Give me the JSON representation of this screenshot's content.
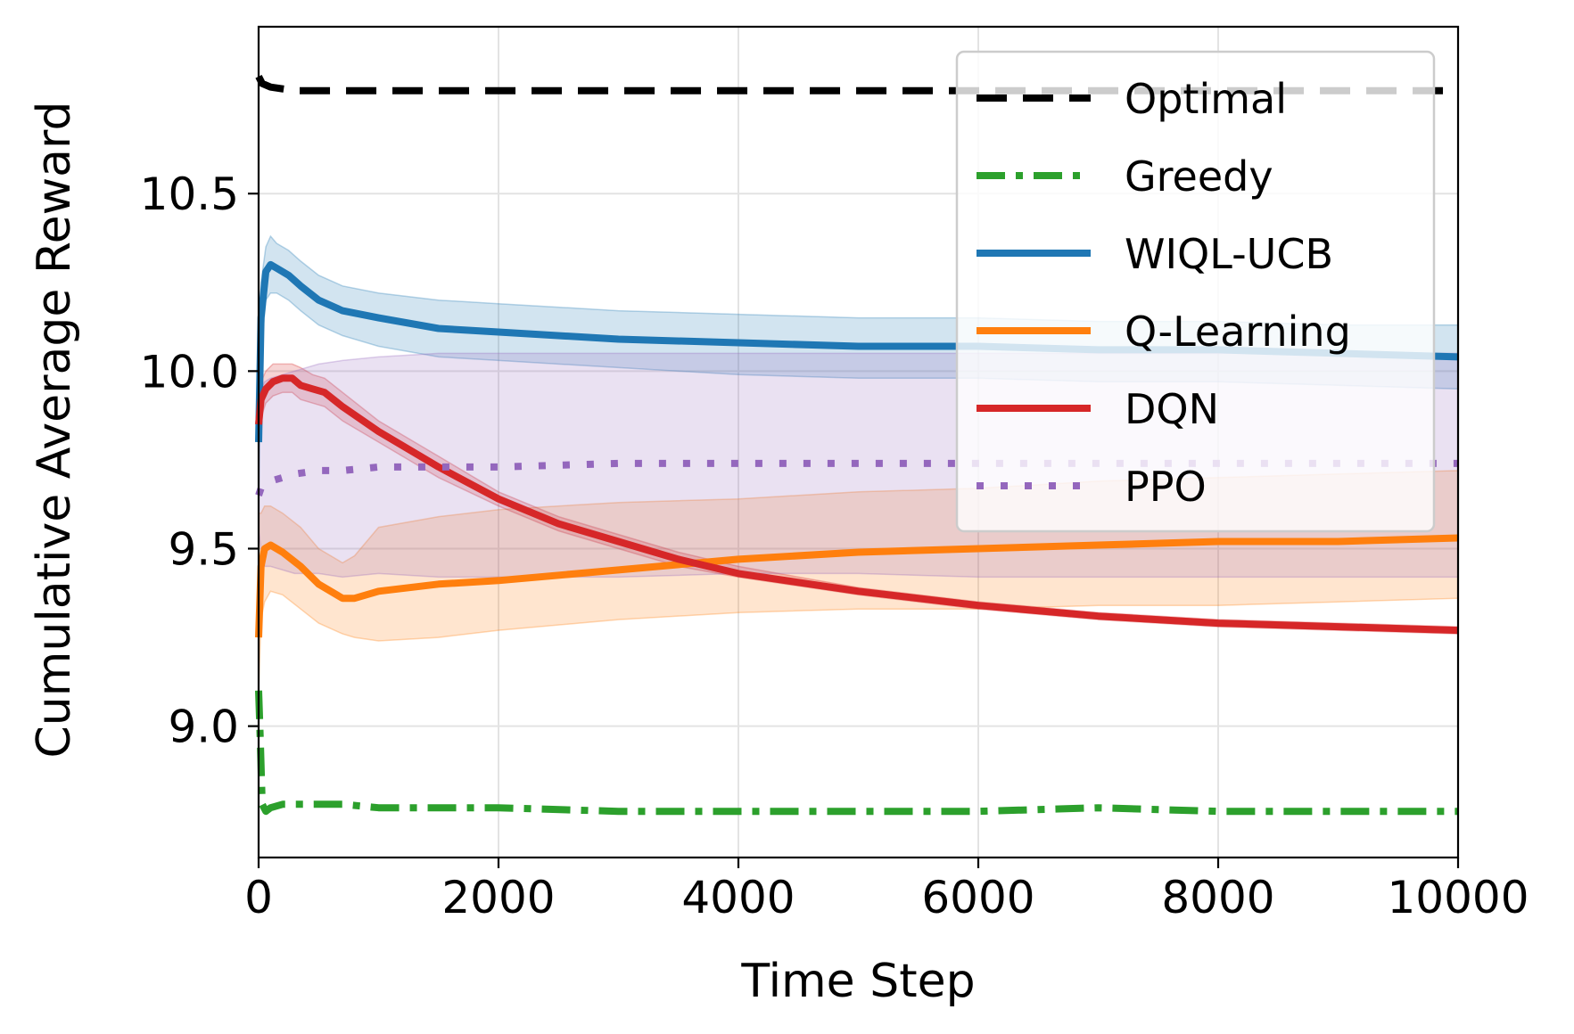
{
  "chart_data": {
    "type": "line",
    "title": "",
    "xlabel": "Time Step",
    "ylabel": "Cumulative Average Reward",
    "xlim": [
      0,
      10000
    ],
    "ylim": [
      8.63,
      10.97
    ],
    "xticks": [
      0,
      2000,
      4000,
      6000,
      8000,
      10000
    ],
    "xtick_labels": [
      "0",
      "2000",
      "4000",
      "6000",
      "8000",
      "10000"
    ],
    "yticks": [
      9.0,
      9.5,
      10.0,
      10.5
    ],
    "ytick_labels": [
      "9.0",
      "9.5",
      "10.0",
      "10.5"
    ],
    "grid": true,
    "legend_position": "top-right",
    "series": [
      {
        "name": "Optimal",
        "color": "#000000",
        "style": "dashed",
        "x": [
          0,
          30,
          100,
          300,
          600,
          1000,
          2000,
          4000,
          6000,
          8000,
          10000
        ],
        "y": [
          10.83,
          10.81,
          10.8,
          10.79,
          10.79,
          10.79,
          10.79,
          10.79,
          10.79,
          10.79,
          10.79
        ]
      },
      {
        "name": "Greedy",
        "color": "#2ca02c",
        "style": "dashdot",
        "x": [
          0,
          15,
          30,
          60,
          100,
          200,
          400,
          700,
          1000,
          1500,
          2000,
          3000,
          4000,
          5000,
          6000,
          7000,
          8000,
          9000,
          10000
        ],
        "y": [
          9.1,
          8.95,
          8.78,
          8.76,
          8.77,
          8.78,
          8.78,
          8.78,
          8.77,
          8.77,
          8.77,
          8.76,
          8.76,
          8.76,
          8.76,
          8.77,
          8.76,
          8.76,
          8.76
        ]
      },
      {
        "name": "WIQL-UCB",
        "color": "#1f77b4",
        "style": "solid",
        "x": [
          0,
          20,
          60,
          100,
          150,
          250,
          350,
          500,
          700,
          1000,
          1500,
          2000,
          3000,
          4000,
          5000,
          6000,
          7000,
          8000,
          9000,
          10000
        ],
        "y": [
          9.8,
          10.15,
          10.28,
          10.3,
          10.29,
          10.27,
          10.24,
          10.2,
          10.17,
          10.15,
          10.12,
          10.11,
          10.09,
          10.08,
          10.07,
          10.07,
          10.06,
          10.06,
          10.05,
          10.04
        ],
        "band_low": [
          9.6,
          10.05,
          10.2,
          10.22,
          10.22,
          10.2,
          10.17,
          10.13,
          10.1,
          10.07,
          10.04,
          10.03,
          10.01,
          9.99,
          9.98,
          9.98,
          9.97,
          9.97,
          9.96,
          9.95
        ],
        "band_high": [
          10.0,
          10.25,
          10.35,
          10.38,
          10.36,
          10.34,
          10.31,
          10.27,
          10.24,
          10.22,
          10.2,
          10.19,
          10.17,
          10.16,
          10.15,
          10.15,
          10.14,
          10.14,
          10.13,
          10.13
        ]
      },
      {
        "name": "Q-Learning",
        "color": "#ff7f0e",
        "style": "solid",
        "x": [
          0,
          20,
          50,
          100,
          200,
          350,
          500,
          700,
          800,
          1000,
          1500,
          2000,
          3000,
          4000,
          5000,
          6000,
          7000,
          8000,
          9000,
          10000
        ],
        "y": [
          9.25,
          9.45,
          9.5,
          9.51,
          9.49,
          9.45,
          9.4,
          9.36,
          9.36,
          9.38,
          9.4,
          9.41,
          9.44,
          9.47,
          9.49,
          9.5,
          9.51,
          9.52,
          9.52,
          9.53
        ],
        "band_low": [
          9.1,
          9.3,
          9.35,
          9.38,
          9.37,
          9.33,
          9.29,
          9.26,
          9.25,
          9.24,
          9.25,
          9.27,
          9.3,
          9.32,
          9.33,
          9.33,
          9.34,
          9.34,
          9.35,
          9.36
        ],
        "band_high": [
          9.6,
          9.6,
          9.62,
          9.62,
          9.6,
          9.56,
          9.5,
          9.46,
          9.48,
          9.56,
          9.59,
          9.61,
          9.63,
          9.64,
          9.66,
          9.67,
          9.69,
          9.7,
          9.71,
          9.72
        ]
      },
      {
        "name": "DQN",
        "color": "#d62728",
        "style": "solid",
        "x": [
          0,
          20,
          60,
          120,
          200,
          280,
          350,
          450,
          550,
          700,
          1000,
          1500,
          2000,
          2500,
          3000,
          3500,
          4000,
          5000,
          6000,
          7000,
          8000,
          9000,
          10000
        ],
        "y": [
          9.85,
          9.92,
          9.95,
          9.97,
          9.98,
          9.98,
          9.96,
          9.95,
          9.94,
          9.9,
          9.83,
          9.73,
          9.64,
          9.57,
          9.52,
          9.47,
          9.43,
          9.38,
          9.34,
          9.31,
          9.29,
          9.28,
          9.27
        ],
        "band_low": [
          9.8,
          9.87,
          9.91,
          9.93,
          9.94,
          9.94,
          9.92,
          9.91,
          9.9,
          9.86,
          9.8,
          9.7,
          9.62,
          9.55,
          9.5,
          9.45,
          9.42,
          9.37,
          9.33,
          9.3,
          9.28,
          9.27,
          9.26
        ],
        "band_high": [
          9.92,
          9.97,
          10.0,
          10.02,
          10.02,
          10.02,
          10.01,
          9.99,
          9.98,
          9.94,
          9.86,
          9.76,
          9.66,
          9.59,
          9.54,
          9.49,
          9.45,
          9.39,
          9.35,
          9.32,
          9.3,
          9.29,
          9.28
        ]
      },
      {
        "name": "PPO",
        "color": "#9467bd",
        "style": "dotted",
        "x": [
          0,
          20,
          50,
          100,
          200,
          300,
          500,
          700,
          1000,
          1500,
          2000,
          3000,
          4000,
          5000,
          6000,
          7000,
          8000,
          9000,
          10000
        ],
        "y": [
          9.65,
          9.67,
          9.68,
          9.69,
          9.7,
          9.71,
          9.72,
          9.72,
          9.73,
          9.73,
          9.73,
          9.74,
          9.74,
          9.74,
          9.74,
          9.74,
          9.74,
          9.74,
          9.74
        ],
        "band_low": [
          9.55,
          9.5,
          9.45,
          9.45,
          9.44,
          9.43,
          9.43,
          9.42,
          9.43,
          9.42,
          9.42,
          9.42,
          9.43,
          9.43,
          9.42,
          9.42,
          9.42,
          9.42,
          9.42
        ],
        "band_high": [
          9.8,
          9.95,
          9.97,
          9.98,
          9.99,
          10.0,
          10.02,
          10.03,
          10.04,
          10.05,
          10.05,
          10.05,
          10.05,
          10.05,
          10.05,
          10.05,
          10.05,
          10.05,
          10.05
        ]
      }
    ]
  }
}
